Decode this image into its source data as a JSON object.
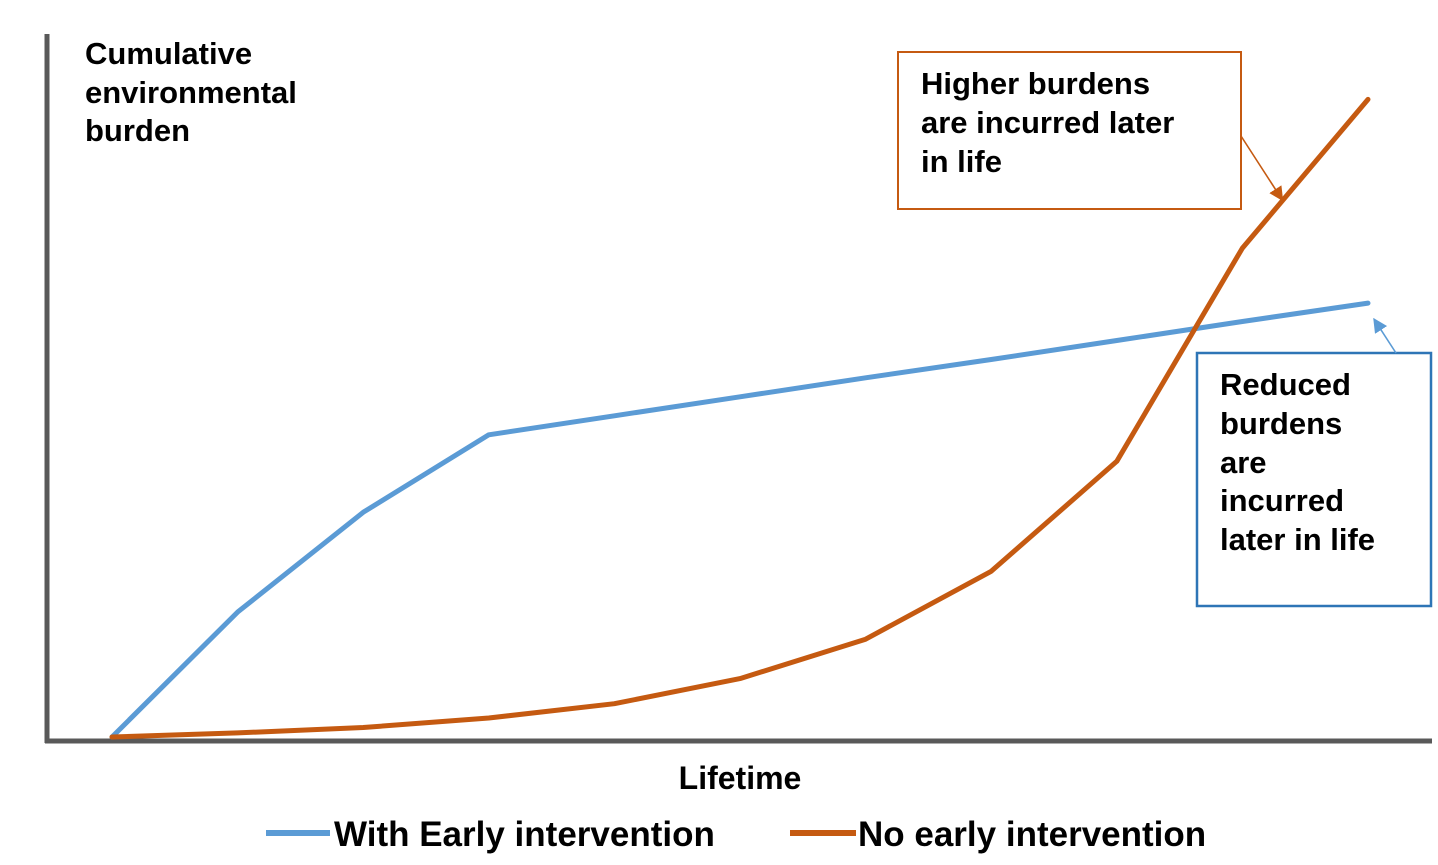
{
  "chart_data": {
    "type": "line",
    "title": "",
    "ylabel": [
      "Cumulative",
      "environmental",
      "burden"
    ],
    "xlabel": "Lifetime",
    "x": [
      0,
      1,
      2,
      3,
      4,
      5,
      6,
      7,
      8,
      9,
      10
    ],
    "xlim": [
      0,
      10.5
    ],
    "ylim": [
      0,
      100
    ],
    "grid": false,
    "legend_position": "bottom",
    "series": [
      {
        "name": "With Early intervention",
        "color": "#5b9bd5",
        "values": [
          0,
          18.4,
          33.1,
          44.5,
          47.3,
          50.1,
          52.9,
          55.6,
          58.4,
          61.2,
          63.9
        ]
      },
      {
        "name": "No early intervention",
        "color": "#c55a11",
        "values": [
          0,
          0.6,
          1.4,
          2.8,
          4.9,
          8.6,
          14.4,
          24.4,
          40.6,
          72.0,
          93.9
        ]
      }
    ],
    "annotations": [
      {
        "lines": [
          "Higher burdens",
          "are incurred later",
          "in life"
        ],
        "color": "#c55a11",
        "series": "No early intervention",
        "target_x": 9.35
      },
      {
        "lines": [
          "Reduced",
          "burdens",
          "are",
          "incurred",
          "later in life"
        ],
        "color": "#2e75b6",
        "series": "With Early intervention",
        "target_x": 10
      }
    ]
  }
}
